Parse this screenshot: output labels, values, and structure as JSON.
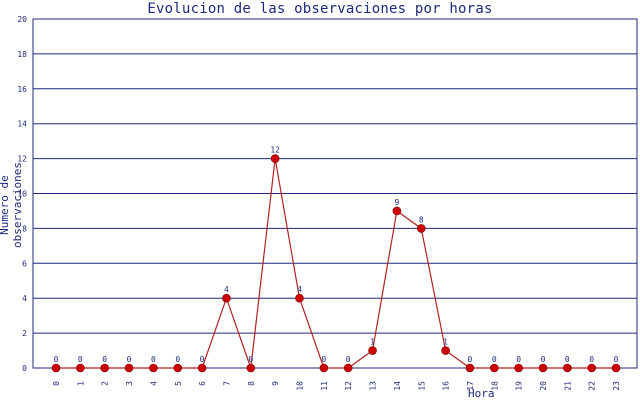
{
  "chart_data": {
    "type": "line",
    "title": "Evolucion de las observaciones por horas",
    "xlabel": "Hora",
    "ylabel": "Numero de observaciones",
    "categories": [
      "0",
      "1",
      "2",
      "3",
      "4",
      "5",
      "6",
      "7",
      "8",
      "9",
      "10",
      "11",
      "12",
      "13",
      "14",
      "15",
      "16",
      "17",
      "18",
      "19",
      "20",
      "21",
      "22",
      "23"
    ],
    "values": [
      0,
      0,
      0,
      0,
      0,
      0,
      0,
      4,
      0,
      12,
      4,
      0,
      0,
      1,
      9,
      8,
      1,
      0,
      0,
      0,
      0,
      0,
      0,
      0
    ],
    "ylim": [
      0,
      20
    ],
    "yticks": [
      0,
      2,
      4,
      6,
      8,
      10,
      12,
      14,
      16,
      18,
      20
    ],
    "grid": true,
    "line_color": "#b22222",
    "point_color": "#cc0000",
    "label_color": "#1f2a7a",
    "grid_color": "#1f2a7a"
  }
}
